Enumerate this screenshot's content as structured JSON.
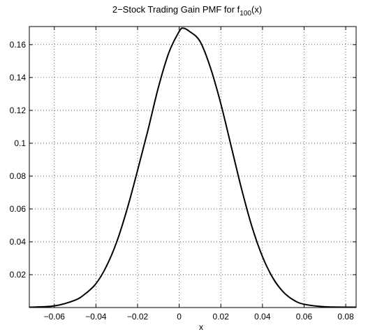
{
  "chart_data": {
    "type": "line",
    "title": "2−Stock Trading Gain PMF for f",
    "title_subscript": "100",
    "title_suffix": "(x)",
    "xlabel": "x",
    "ylabel": "",
    "xlim": [
      -0.072,
      0.085
    ],
    "ylim": [
      0,
      0.171
    ],
    "grid": true,
    "x_ticks": [
      -0.06,
      -0.04,
      -0.02,
      0,
      0.02,
      0.04,
      0.06,
      0.08
    ],
    "x_tick_labels": [
      "−0.06",
      "−0.04",
      "−0.02",
      "0",
      "0.02",
      "0.04",
      "0.06",
      "0.08"
    ],
    "y_ticks": [
      0.02,
      0.04,
      0.06,
      0.08,
      0.1,
      0.12,
      0.14,
      0.16
    ],
    "y_tick_labels": [
      "0.02",
      "0.04",
      "0.06",
      "0.08",
      "0.1",
      "0.12",
      "0.14",
      "0.16"
    ],
    "series": [
      {
        "color": "#000000",
        "x": [
          -0.072,
          -0.06,
          -0.05,
          -0.045,
          -0.04,
          -0.035,
          -0.03,
          -0.025,
          -0.02,
          -0.015,
          -0.01,
          -0.005,
          0,
          0.002,
          0.005,
          0.01,
          0.015,
          0.02,
          0.025,
          0.03,
          0.035,
          0.04,
          0.045,
          0.05,
          0.055,
          0.06,
          0.07,
          0.085
        ],
        "y": [
          0.0002,
          0.001,
          0.0045,
          0.0085,
          0.0145,
          0.025,
          0.04,
          0.06,
          0.0835,
          0.108,
          0.134,
          0.155,
          0.168,
          0.17,
          0.168,
          0.162,
          0.146,
          0.124,
          0.098,
          0.072,
          0.049,
          0.031,
          0.018,
          0.0095,
          0.0045,
          0.002,
          0.0005,
          0.0002
        ]
      }
    ]
  }
}
